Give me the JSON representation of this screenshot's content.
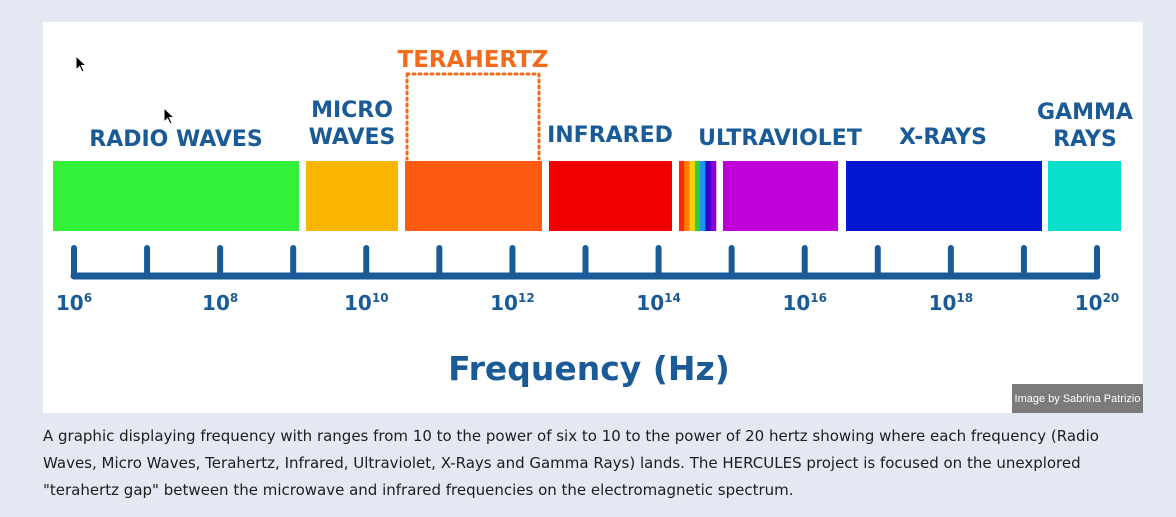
{
  "figure": {
    "bands": [
      {
        "label_lines": [
          "RADIO WAVES"
        ],
        "color": "#33f03a"
      },
      {
        "label_lines": [
          "MICRO",
          "WAVES"
        ],
        "color": "#fbb400"
      },
      {
        "label_lines": [
          "TERAHERTZ"
        ],
        "color": "#ff5a12"
      },
      {
        "label_lines": [
          "INFRARED"
        ],
        "color": "#f10000"
      },
      {
        "label_lines": [
          "ULTRAVIOLET"
        ],
        "color": "#c000d6"
      },
      {
        "label_lines": [
          "X-RAYS"
        ],
        "color": "#0417d1"
      },
      {
        "label_lines": [
          "GAMMA",
          "RAYS"
        ],
        "color": "#08dfcc"
      }
    ],
    "visible_light_colors": [
      "#ff2a00",
      "#ff8000",
      "#ffd000",
      "#33cc33",
      "#1e90ff",
      "#3300cc",
      "#8a00d4"
    ],
    "tick_labels": [
      {
        "base": "10",
        "exp": "6"
      },
      {
        "base": "10",
        "exp": "8"
      },
      {
        "base": "10",
        "exp": "10"
      },
      {
        "base": "10",
        "exp": "12"
      },
      {
        "base": "10",
        "exp": "14"
      },
      {
        "base": "10",
        "exp": "16"
      },
      {
        "base": "10",
        "exp": "18"
      },
      {
        "base": "10",
        "exp": "20"
      }
    ],
    "axis_title": "Frequency (Hz)",
    "axis_color": "#1a5a96",
    "terahertz_highlight_color": "#f26a1b",
    "credit": "Image by Sabrina Patrizio"
  },
  "caption": "A graphic displaying frequency with ranges from 10 to the power of six to 10 to the power of 20 hertz showing where each frequency (Radio Waves, Micro Waves, Terahertz, Infrared, Ultraviolet, X-Rays and Gamma Rays) lands. The HERCULES project is focused on the unexplored \"terahertz gap\" between the microwave and infrared frequencies on the electromagnetic spectrum."
}
